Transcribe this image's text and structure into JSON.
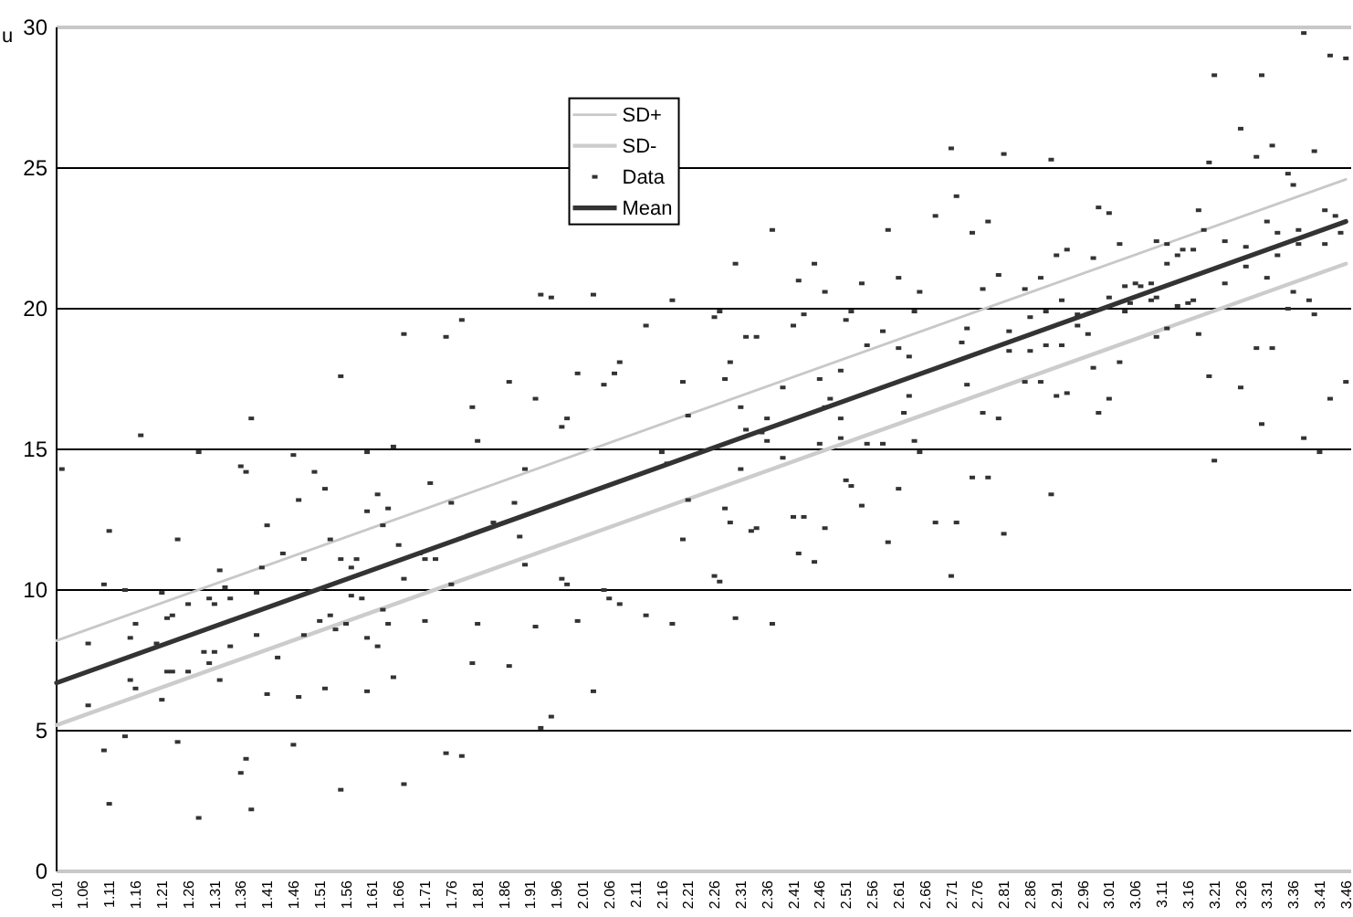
{
  "chart_data": {
    "type": "scatter",
    "ylabel": "u",
    "xlim": [
      1.01,
      3.47
    ],
    "xticks": [
      1.01,
      1.06,
      1.11,
      1.16,
      1.21,
      1.26,
      1.31,
      1.36,
      1.41,
      1.46,
      1.51,
      1.56,
      1.61,
      1.66,
      1.71,
      1.76,
      1.81,
      1.86,
      1.91,
      1.96,
      2.01,
      2.06,
      2.11,
      2.16,
      2.21,
      2.26,
      2.31,
      2.36,
      2.41,
      2.46,
      2.51,
      2.56,
      2.61,
      2.66,
      2.71,
      2.76,
      2.81,
      2.86,
      2.91,
      2.96,
      3.01,
      3.06,
      3.11,
      3.16,
      3.21,
      3.26,
      3.31,
      3.36,
      3.41,
      3.46
    ],
    "ylim": [
      0,
      30
    ],
    "yticks": [
      0,
      5,
      10,
      15,
      20,
      25,
      30
    ],
    "grid": "y",
    "legend": "top",
    "series": [
      {
        "name": "SD+",
        "type": "line",
        "color": "#c8c8c8",
        "x": [
          1.01,
          3.46
        ],
        "values": [
          8.2,
          24.6
        ]
      },
      {
        "name": "SD-",
        "type": "line",
        "color": "#cccccc",
        "x": [
          1.01,
          3.46
        ],
        "values": [
          5.2,
          21.6
        ]
      },
      {
        "name": "Data",
        "color": "#333333",
        "marker": "square",
        "x": [
          1.17,
          1.28,
          1.38,
          1.46,
          1.55,
          1.6,
          1.65,
          1.67,
          1.75,
          1.78,
          1.8,
          1.81,
          1.87,
          1.92,
          1.93,
          1.95,
          1.97,
          1.98,
          2.0,
          2.03,
          2.05,
          2.07,
          2.08,
          2.13,
          2.18,
          2.16,
          3.38,
          3.43,
          3.46,
          3.21,
          3.3,
          3.26,
          3.32,
          3.29,
          3.4,
          3.2,
          2.71,
          2.81,
          2.9,
          3.35,
          3.36,
          2.72,
          2.68,
          2.99,
          3.01,
          3.18,
          3.42,
          3.44,
          2.78,
          3.31,
          2.37,
          2.59,
          2.75,
          3.33,
          3.37,
          3.45,
          3.19,
          3.03,
          3.1,
          3.12,
          3.23,
          3.27,
          3.37,
          3.42,
          2.93,
          2.91,
          3.15,
          3.17,
          3.14,
          3.33,
          2.3,
          2.45,
          2.98,
          3.12,
          3.27,
          2.8,
          2.88,
          2.42,
          2.54,
          2.61,
          3.23,
          3.31,
          3.04,
          3.06,
          3.07,
          3.09,
          2.47,
          2.65,
          2.77,
          2.85,
          3.36,
          3.01,
          3.09,
          3.1,
          2.92,
          3.05,
          3.14,
          3.16,
          3.17,
          3.39,
          2.27,
          2.26,
          2.43,
          2.41,
          2.52,
          2.51,
          2.64,
          2.86,
          2.89,
          2.95,
          2.95,
          2.97,
          3.04,
          3.4,
          3.35,
          2.34,
          2.32,
          2.58,
          2.82,
          2.74,
          3.18,
          3.1,
          3.12,
          2.55,
          2.61,
          2.73,
          2.82,
          2.86,
          2.89,
          2.92,
          2.63,
          3.29,
          3.32,
          2.29,
          2.2,
          2.28,
          2.5,
          2.46,
          2.39,
          2.98,
          3.03,
          2.85,
          2.88,
          2.74,
          2.91,
          2.93,
          3.01,
          3.2,
          3.26,
          3.46,
          3.43,
          2.63,
          2.48,
          2.47,
          2.31,
          2.21,
          2.36,
          2.5,
          2.62,
          2.77,
          2.8,
          2.99,
          3.3,
          3.38,
          2.32,
          2.35,
          2.36,
          2.46,
          2.5,
          2.55,
          2.58,
          2.64,
          2.65,
          3.41,
          1.02,
          1.11,
          1.1,
          1.14,
          1.07,
          1.07,
          1.1,
          1.14,
          1.11,
          1.15,
          1.16,
          1.15,
          1.16,
          1.21,
          1.24,
          1.22,
          1.23,
          1.2,
          1.21,
          1.22,
          1.23,
          1.26,
          1.24,
          1.26,
          1.29,
          1.3,
          1.31,
          1.3,
          1.31,
          1.32,
          1.33,
          1.34,
          1.32,
          1.34,
          1.36,
          1.37,
          1.36,
          1.37,
          1.38,
          1.39,
          1.39,
          1.4,
          1.41,
          1.41,
          1.43,
          1.44,
          1.46,
          1.47,
          1.47,
          1.48,
          1.48,
          1.5,
          1.51,
          1.52,
          1.52,
          1.53,
          1.53,
          1.54,
          1.55,
          1.55,
          1.56,
          1.57,
          1.57,
          1.58,
          1.59,
          1.6,
          1.6,
          1.6,
          1.62,
          1.62,
          1.63,
          1.63,
          1.64,
          1.64,
          1.65,
          1.66,
          1.67,
          1.67,
          1.7,
          1.71,
          1.72,
          1.71,
          1.73,
          1.75,
          1.78,
          1.76,
          1.76,
          1.8,
          1.81,
          1.84,
          1.87,
          1.88,
          1.89,
          1.9,
          1.9,
          1.92,
          1.93,
          1.95,
          1.97,
          1.98,
          2.0,
          2.03,
          2.05,
          2.06,
          2.08,
          2.13,
          2.18,
          2.17,
          3.21,
          2.31,
          2.39,
          2.51,
          2.52,
          2.61,
          2.75,
          2.78,
          2.9,
          2.21,
          2.28,
          2.29,
          2.33,
          2.34,
          2.41,
          2.43,
          2.47,
          2.54,
          2.59,
          2.68,
          2.72,
          2.81,
          2.2,
          2.42,
          2.45,
          2.26,
          2.27,
          2.71,
          2.3,
          2.37,
          1.28
        ],
        "values": [
          15.5,
          14.9,
          16.1,
          14.8,
          17.6,
          14.9,
          15.1,
          19.1,
          19.0,
          19.6,
          16.5,
          15.3,
          17.4,
          16.8,
          20.5,
          20.4,
          15.8,
          16.1,
          17.7,
          20.5,
          17.3,
          17.7,
          18.1,
          19.4,
          20.3,
          14.9,
          29.8,
          29.0,
          28.9,
          28.3,
          28.3,
          26.4,
          25.8,
          25.4,
          25.6,
          25.2,
          25.7,
          25.5,
          25.3,
          24.8,
          24.4,
          24.0,
          23.3,
          23.6,
          23.4,
          23.5,
          23.5,
          23.3,
          23.1,
          23.1,
          22.8,
          22.8,
          22.7,
          22.7,
          22.8,
          22.7,
          22.8,
          22.3,
          22.4,
          22.3,
          22.4,
          22.2,
          22.3,
          22.3,
          22.1,
          21.9,
          22.1,
          22.1,
          21.9,
          21.9,
          21.6,
          21.6,
          21.8,
          21.6,
          21.5,
          21.2,
          21.1,
          21.0,
          20.9,
          21.1,
          20.9,
          21.1,
          20.8,
          20.9,
          20.8,
          20.9,
          20.6,
          20.6,
          20.7,
          20.7,
          20.6,
          20.4,
          20.3,
          20.4,
          20.3,
          20.2,
          20.1,
          20.2,
          20.3,
          20.3,
          19.9,
          19.7,
          19.8,
          19.4,
          19.9,
          19.6,
          19.9,
          19.7,
          19.9,
          19.8,
          19.4,
          19.1,
          19.9,
          19.8,
          20.0,
          19.0,
          19.0,
          19.2,
          19.2,
          19.3,
          19.1,
          19.0,
          19.3,
          18.7,
          18.6,
          18.8,
          18.5,
          18.5,
          18.7,
          18.7,
          18.3,
          18.6,
          18.6,
          18.1,
          17.4,
          17.5,
          17.8,
          17.5,
          17.2,
          17.9,
          18.1,
          17.4,
          17.4,
          17.3,
          16.9,
          17.0,
          16.8,
          17.6,
          17.2,
          17.4,
          16.8,
          16.9,
          16.8,
          16.5,
          16.5,
          16.2,
          16.1,
          16.1,
          16.3,
          16.3,
          16.1,
          16.3,
          15.9,
          15.4,
          15.7,
          15.6,
          15.3,
          15.2,
          15.4,
          15.2,
          15.2,
          15.3,
          14.9,
          14.9,
          14.3,
          12.1,
          10.2,
          10.0,
          8.1,
          5.9,
          4.3,
          4.8,
          2.4,
          6.8,
          6.5,
          8.3,
          8.8,
          9.9,
          11.8,
          9.0,
          9.1,
          8.1,
          6.1,
          7.1,
          7.1,
          7.1,
          4.6,
          9.5,
          7.8,
          7.4,
          7.8,
          9.7,
          9.5,
          10.7,
          10.1,
          9.7,
          6.8,
          8.0,
          14.4,
          14.2,
          3.5,
          4.0,
          2.2,
          9.9,
          8.4,
          10.8,
          12.3,
          6.3,
          7.6,
          11.3,
          4.5,
          13.2,
          6.2,
          11.1,
          8.4,
          14.2,
          8.9,
          13.6,
          6.5,
          9.1,
          11.8,
          8.6,
          2.9,
          11.1,
          8.8,
          10.8,
          9.8,
          11.1,
          9.7,
          12.8,
          8.3,
          6.4,
          13.4,
          8.0,
          9.3,
          12.3,
          12.9,
          8.8,
          6.9,
          11.6,
          3.1,
          10.4,
          11.3,
          11.1,
          13.8,
          8.9,
          11.1,
          4.2,
          4.1,
          13.1,
          10.2,
          7.4,
          8.8,
          12.4,
          7.3,
          13.1,
          11.9,
          10.9,
          14.3,
          8.7,
          5.1,
          5.5,
          10.4,
          10.2,
          8.9,
          6.4,
          10.0,
          9.7,
          9.5,
          9.1,
          8.8,
          14.5,
          14.6,
          14.3,
          14.7,
          13.9,
          13.7,
          13.6,
          14.0,
          14.0,
          13.4,
          13.2,
          12.9,
          12.4,
          12.1,
          12.2,
          12.6,
          12.6,
          12.2,
          13.0,
          11.7,
          12.4,
          12.4,
          12.0,
          11.8,
          11.3,
          11.0,
          10.5,
          10.3,
          10.5,
          9.0,
          8.8,
          1.9
        ]
      },
      {
        "name": "Mean",
        "type": "line",
        "color": "#333333",
        "x": [
          1.01,
          3.46
        ],
        "values": [
          6.7,
          23.1
        ]
      }
    ]
  }
}
